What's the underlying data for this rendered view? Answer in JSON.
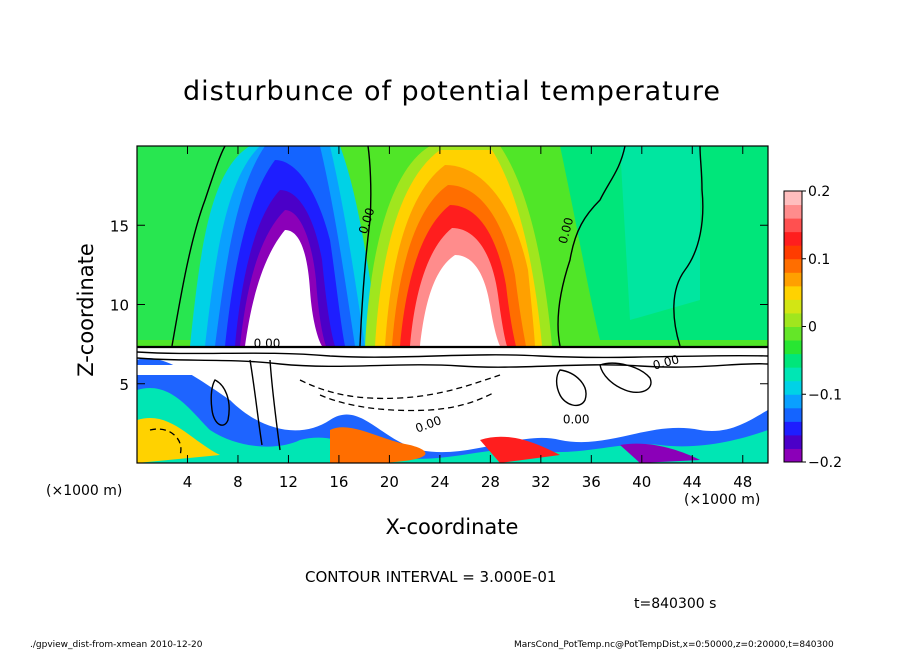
{
  "chart_data": {
    "type": "heatmap",
    "title": "disturbunce of potential temperature",
    "xlabel": "X-coordinate",
    "ylabel": "Z-coordinate",
    "x_unit": "(×1000 m)",
    "xlim": [
      0,
      50
    ],
    "ylim": [
      0,
      20
    ],
    "x_ticks": [
      4,
      8,
      12,
      16,
      20,
      24,
      28,
      32,
      36,
      40,
      44,
      48
    ],
    "y_ticks": [
      5,
      10,
      15
    ],
    "colorbar": {
      "range": [
        -0.2,
        0.2
      ],
      "ticks": [
        "0.2",
        "0.1",
        "0",
        "−0.1",
        "−0.2"
      ],
      "tick_values": [
        0.2,
        0.1,
        0,
        -0.1,
        -0.2
      ],
      "colors": [
        "#8b00b8",
        "#4b00c8",
        "#1e1eff",
        "#1464ff",
        "#0aa0ff",
        "#00d2e6",
        "#00e6b4",
        "#00e67a",
        "#28e632",
        "#64e628",
        "#a0e61e",
        "#d2e614",
        "#ffd200",
        "#ffa000",
        "#ff6e00",
        "#ff3c00",
        "#ff1e1e",
        "#ff5050",
        "#ff8c8c",
        "#ffbebe"
      ]
    },
    "contour_labels": [
      "0.00",
      "0.00",
      "0.00",
      "0.00",
      "0.00",
      "0.00"
    ],
    "features": [
      {
        "kind": "cold anomaly",
        "x": 12,
        "z_min": 7.5,
        "z_max": 19,
        "value": -0.2
      },
      {
        "kind": "warm anomaly",
        "x": 25,
        "z_min": 7.5,
        "z_max": 19,
        "value": 0.2
      }
    ]
  },
  "texts": {
    "contour_note": "CONTOUR INTERVAL = 3.000E-01",
    "time": "t=840300 s",
    "x_unit_left": "(×1000 m)",
    "x_unit_right": "(×1000 m)",
    "footer_left": "./gpview_dist-from-xmean  2010-12-20",
    "footer_right": "MarsCond_PotTemp.nc@PotTempDist,x=0:50000,z=0:20000,t=840300"
  }
}
